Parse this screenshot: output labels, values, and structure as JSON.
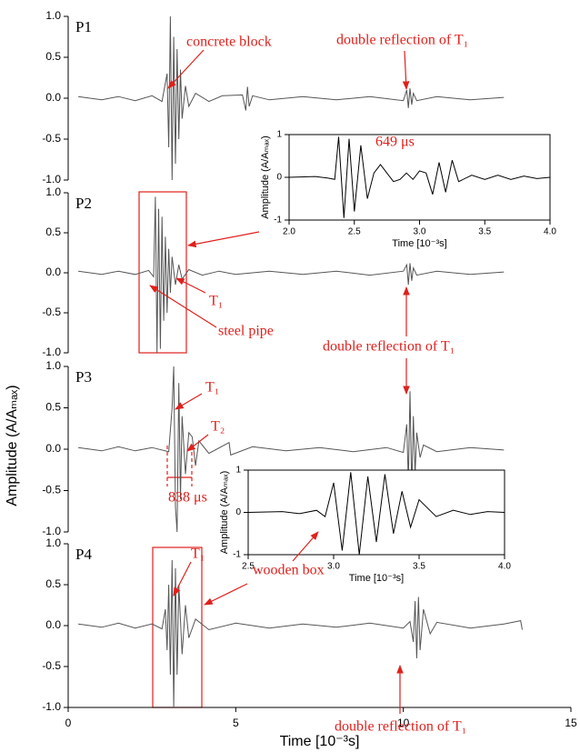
{
  "chart_data": [
    {
      "type": "line",
      "title": "P1",
      "y_label": "Amplitude (A/Aₘₐₓ)",
      "color": "#555555",
      "xlim": [
        0,
        15
      ],
      "ylim": [
        -1,
        1
      ],
      "yticks": [
        {
          "value": -1,
          "label": "-1.0"
        },
        {
          "value": -0.5,
          "label": "-0.5"
        },
        {
          "value": 0,
          "label": "0.0"
        },
        {
          "value": 0.5,
          "label": "0.5"
        },
        {
          "value": 1,
          "label": "1.0"
        }
      ],
      "x": [
        0.3,
        1,
        1.5,
        2,
        2.5,
        2.8,
        2.95,
        3.0,
        3.05,
        3.1,
        3.15,
        3.2,
        3.25,
        3.3,
        3.35,
        3.4,
        3.5,
        3.6,
        3.8,
        4.2,
        4.6,
        5.2,
        5.3,
        5.35,
        5.4,
        5.5,
        6,
        7,
        8,
        9,
        10,
        10.1,
        10.15,
        10.2,
        10.25,
        10.3,
        10.4,
        11,
        12,
        13
      ],
      "values": [
        0.02,
        -0.02,
        0.02,
        -0.03,
        0.03,
        -0.04,
        0.3,
        -0.6,
        1.0,
        -1.0,
        0.75,
        -0.8,
        0.6,
        -0.5,
        0.35,
        -0.25,
        0.15,
        -0.1,
        0.06,
        -0.04,
        0.03,
        0.04,
        -0.15,
        0.14,
        -0.1,
        0.03,
        -0.02,
        0.02,
        -0.02,
        0.02,
        -0.03,
        0.1,
        -0.12,
        0.12,
        -0.08,
        0.06,
        -0.03,
        0.02,
        -0.02,
        0.01
      ],
      "annotations": [
        "concrete block",
        "double reflection of T₁"
      ]
    },
    {
      "type": "line",
      "title": "P2",
      "color": "#555555",
      "xlim": [
        0,
        15
      ],
      "ylim": [
        -1,
        1
      ],
      "yticks": [
        {
          "value": -1,
          "label": "-1.0"
        },
        {
          "value": -0.5,
          "label": "-0.5"
        },
        {
          "value": 0,
          "label": "0.0"
        },
        {
          "value": 0.5,
          "label": "0.5"
        },
        {
          "value": 1,
          "label": "1.0"
        }
      ],
      "x": [
        0.3,
        1,
        1.5,
        2,
        2.4,
        2.55,
        2.6,
        2.65,
        2.7,
        2.75,
        2.8,
        2.85,
        2.9,
        2.95,
        3.0,
        3.05,
        3.1,
        3.2,
        3.3,
        3.4,
        3.6,
        4,
        4.5,
        5,
        6,
        7,
        8,
        9,
        10,
        10.1,
        10.15,
        10.2,
        10.25,
        10.3,
        10.4,
        11,
        12,
        13
      ],
      "values": [
        0.02,
        -0.02,
        0.02,
        -0.02,
        0.03,
        -0.05,
        0.95,
        -1.0,
        0.8,
        -0.95,
        0.7,
        -0.6,
        0.45,
        -0.5,
        0.3,
        -0.25,
        0.2,
        -0.15,
        0.1,
        -0.08,
        0.04,
        -0.03,
        0.02,
        -0.02,
        0.02,
        -0.02,
        0.02,
        -0.03,
        0.02,
        0.1,
        -0.15,
        0.12,
        -0.1,
        0.06,
        -0.03,
        0.02,
        -0.02,
        0.01
      ],
      "annotations": [
        "T₁",
        "steel pipe",
        "double reflection of T₁"
      ]
    },
    {
      "type": "line",
      "title": "P3",
      "color": "#555555",
      "xlim": [
        0,
        15
      ],
      "ylim": [
        -1,
        1
      ],
      "yticks": [
        {
          "value": -1,
          "label": "-1.0"
        },
        {
          "value": -0.5,
          "label": "-0.5"
        },
        {
          "value": 0,
          "label": "0.0"
        },
        {
          "value": 0.5,
          "label": "0.5"
        },
        {
          "value": 1,
          "label": "1.0"
        }
      ],
      "x": [
        0.3,
        1,
        1.5,
        2,
        2.5,
        3.0,
        3.1,
        3.15,
        3.2,
        3.25,
        3.3,
        3.35,
        3.4,
        3.5,
        3.6,
        3.7,
        3.8,
        3.9,
        4.2,
        4.8,
        4.85,
        5.5,
        6.5,
        7.5,
        8.5,
        9.5,
        10.0,
        10.1,
        10.15,
        10.2,
        10.25,
        10.3,
        10.35,
        10.4,
        10.5,
        10.6,
        11,
        12,
        13
      ],
      "values": [
        0.02,
        -0.02,
        0.03,
        -0.02,
        0.02,
        -0.03,
        0.5,
        1.0,
        -0.7,
        -1.0,
        0.8,
        -0.6,
        0.4,
        -0.3,
        0.2,
        0.15,
        -0.2,
        0.1,
        -0.05,
        0.08,
        -0.07,
        0.03,
        -0.02,
        0.02,
        -0.03,
        0.02,
        -0.04,
        0.3,
        -0.4,
        0.7,
        -0.5,
        0.4,
        -0.3,
        0.2,
        -0.1,
        0.05,
        -0.03,
        0.02,
        -0.01
      ],
      "annotations": [
        "T₁",
        "T₂",
        "838 μs"
      ]
    },
    {
      "type": "line",
      "title": "P4",
      "x_label": "Time [10⁻³s]",
      "color": "#555555",
      "xlim": [
        0,
        15
      ],
      "ylim": [
        -1,
        1
      ],
      "xticks": [
        0,
        5,
        10,
        15
      ],
      "yticks": [
        {
          "value": -1,
          "label": "-1.0"
        },
        {
          "value": -0.5,
          "label": "-0.5"
        },
        {
          "value": 0,
          "label": "0.0"
        },
        {
          "value": 0.5,
          "label": "0.5"
        },
        {
          "value": 1,
          "label": "1.0"
        }
      ],
      "x": [
        0.3,
        1,
        1.5,
        2,
        2.5,
        2.8,
        2.9,
        2.95,
        3.0,
        3.05,
        3.1,
        3.15,
        3.2,
        3.25,
        3.3,
        3.4,
        3.5,
        3.6,
        3.8,
        4.2,
        5,
        6,
        7,
        8,
        9,
        10,
        10.2,
        10.3,
        10.35,
        10.4,
        10.45,
        10.5,
        10.6,
        10.8,
        11,
        12,
        13,
        13.5,
        13.55
      ],
      "values": [
        0.02,
        -0.02,
        0.03,
        -0.03,
        0.02,
        -0.04,
        0.2,
        -0.3,
        0.5,
        -0.6,
        0.8,
        -1.0,
        0.7,
        -0.6,
        0.5,
        -0.35,
        0.25,
        -0.15,
        0.08,
        -0.05,
        0.03,
        -0.03,
        0.02,
        -0.02,
        0.03,
        -0.03,
        0.05,
        -0.2,
        0.3,
        -0.4,
        0.35,
        -0.3,
        0.2,
        -0.1,
        0.04,
        -0.03,
        0.02,
        0.06,
        -0.05
      ],
      "annotations": [
        "T₁",
        "double reflection of T₁"
      ]
    },
    {
      "type": "line",
      "x_label": "Time [10⁻³s]",
      "y_label": "Amplitude (A/Aₘₐₓ)",
      "color": "#000000",
      "xlim": [
        2,
        4
      ],
      "ylim": [
        -1,
        1
      ],
      "xticks": [
        {
          "value": 2,
          "label": "2.0"
        },
        {
          "value": 2.5,
          "label": "2.5"
        },
        {
          "value": 3,
          "label": "3.0"
        },
        {
          "value": 3.5,
          "label": "3.5"
        },
        {
          "value": 4,
          "label": "4.0"
        }
      ],
      "yticks": [
        -1,
        0,
        1
      ],
      "x": [
        2.0,
        2.2,
        2.3,
        2.35,
        2.38,
        2.42,
        2.46,
        2.5,
        2.55,
        2.6,
        2.65,
        2.7,
        2.75,
        2.8,
        2.85,
        2.9,
        2.95,
        3.0,
        3.05,
        3.1,
        3.15,
        3.2,
        3.25,
        3.3,
        3.4,
        3.5,
        3.6,
        3.7,
        3.8,
        3.9,
        4.0
      ],
      "values": [
        0,
        0.02,
        -0.02,
        -0.05,
        0.95,
        -0.95,
        0.9,
        -0.8,
        0.75,
        -0.5,
        0.1,
        0.3,
        0.1,
        -0.1,
        -0.05,
        0.1,
        -0.05,
        0.15,
        0.1,
        -0.4,
        0.35,
        -0.35,
        0.4,
        -0.1,
        0.05,
        -0.05,
        0.05,
        -0.05,
        0.03,
        -0.03,
        0.0
      ],
      "annotations": [
        "649 μs"
      ]
    },
    {
      "type": "line",
      "x_label": "Time [10⁻³s]",
      "y_label": "Amplitude (A/Aₘₐₓ)",
      "color": "#000000",
      "xlim": [
        2.5,
        4
      ],
      "ylim": [
        -1,
        1
      ],
      "xticks": [
        {
          "value": 2.5,
          "label": "2.5"
        },
        {
          "value": 3,
          "label": "3.0"
        },
        {
          "value": 3.5,
          "label": "3.5"
        },
        {
          "value": 4,
          "label": "4.0"
        }
      ],
      "yticks": [
        -1,
        0,
        1
      ],
      "x": [
        2.5,
        2.7,
        2.8,
        2.9,
        2.95,
        3.0,
        3.05,
        3.1,
        3.15,
        3.2,
        3.25,
        3.3,
        3.35,
        3.4,
        3.45,
        3.5,
        3.6,
        3.7,
        3.8,
        3.9,
        4.0
      ],
      "values": [
        0,
        0.02,
        -0.03,
        0.05,
        -0.1,
        0.7,
        -0.9,
        0.95,
        -1.0,
        0.85,
        -0.7,
        0.9,
        -0.5,
        0.5,
        -0.35,
        0.3,
        -0.1,
        0.05,
        -0.05,
        0.02,
        0.0
      ],
      "annotations": [
        "wooden box"
      ]
    }
  ]
}
